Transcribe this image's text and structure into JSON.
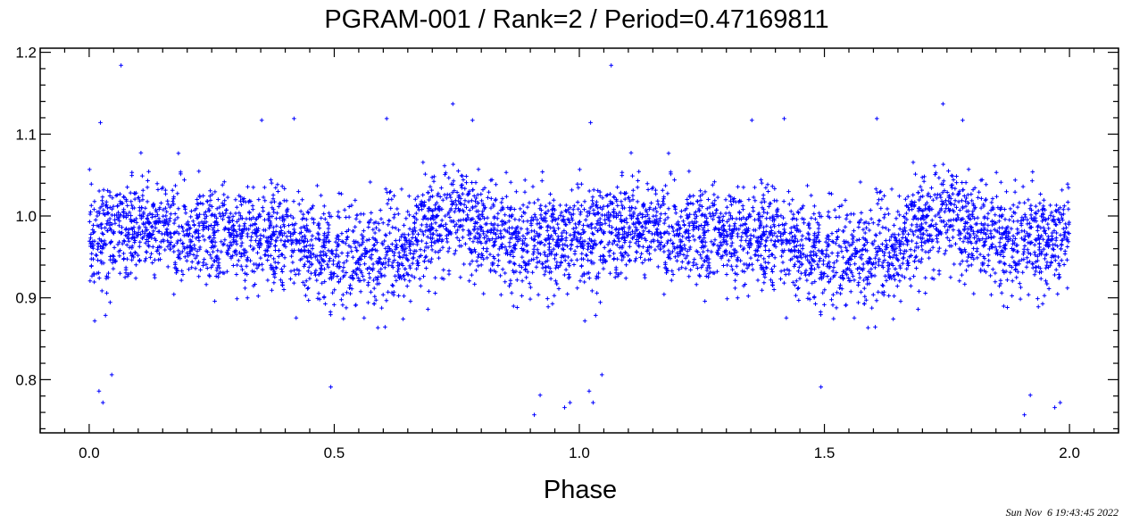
{
  "chart_data": {
    "type": "scatter",
    "title": "PGRAM-001 / Rank=2 / Period=0.47169811",
    "xlabel": "Phase",
    "ylabel": "",
    "xlim": [
      -0.1,
      2.1
    ],
    "ylim": [
      0.735,
      1.205
    ],
    "x_ticks": [
      0.0,
      0.5,
      1.0,
      1.5,
      2.0
    ],
    "x_tick_labels": [
      "0.0",
      "0.5",
      "1.0",
      "1.5",
      "2.0"
    ],
    "y_ticks": [
      0.8,
      0.9,
      1.0,
      1.1,
      1.2
    ],
    "y_tick_labels": [
      "0.8",
      "0.9",
      "1.0",
      "1.1",
      "1.2"
    ],
    "x_minor_step": 0.05,
    "y_minor_step": 0.02,
    "grid": false,
    "marker": "plus",
    "color": "#0000ff",
    "points_per_cycle": 2400,
    "phase_repeat": "points with phase 0–1 repeated at phase+1",
    "profile": {
      "phase": [
        0.0,
        0.05,
        0.1,
        0.15,
        0.2,
        0.25,
        0.3,
        0.35,
        0.4,
        0.45,
        0.5,
        0.55,
        0.6,
        0.65,
        0.7,
        0.75,
        0.8,
        0.85,
        0.9,
        0.95,
        1.0
      ],
      "mean_flux": [
        0.975,
        0.98,
        0.985,
        0.985,
        0.98,
        0.97,
        0.97,
        0.975,
        0.97,
        0.96,
        0.955,
        0.945,
        0.95,
        0.965,
        0.99,
        1.0,
        0.985,
        0.97,
        0.965,
        0.97,
        0.975
      ]
    },
    "scatter_sigma": 0.03,
    "notable_points": [
      {
        "x": 0.065,
        "y": 1.184
      },
      {
        "x": 0.023,
        "y": 1.114
      },
      {
        "x": 0.02,
        "y": 0.786
      },
      {
        "x": 0.028,
        "y": 0.772
      },
      {
        "x": 0.046,
        "y": 0.806
      },
      {
        "x": 0.352,
        "y": 1.117
      },
      {
        "x": 0.418,
        "y": 1.119
      },
      {
        "x": 0.493,
        "y": 0.791
      },
      {
        "x": 0.607,
        "y": 1.119
      },
      {
        "x": 0.742,
        "y": 1.137
      },
      {
        "x": 0.782,
        "y": 1.117
      },
      {
        "x": 0.908,
        "y": 0.757
      },
      {
        "x": 0.92,
        "y": 0.781
      },
      {
        "x": 0.97,
        "y": 0.766
      },
      {
        "x": 0.981,
        "y": 0.772
      }
    ]
  },
  "timestamp": "Sun Nov  6 19:43:45 2022"
}
